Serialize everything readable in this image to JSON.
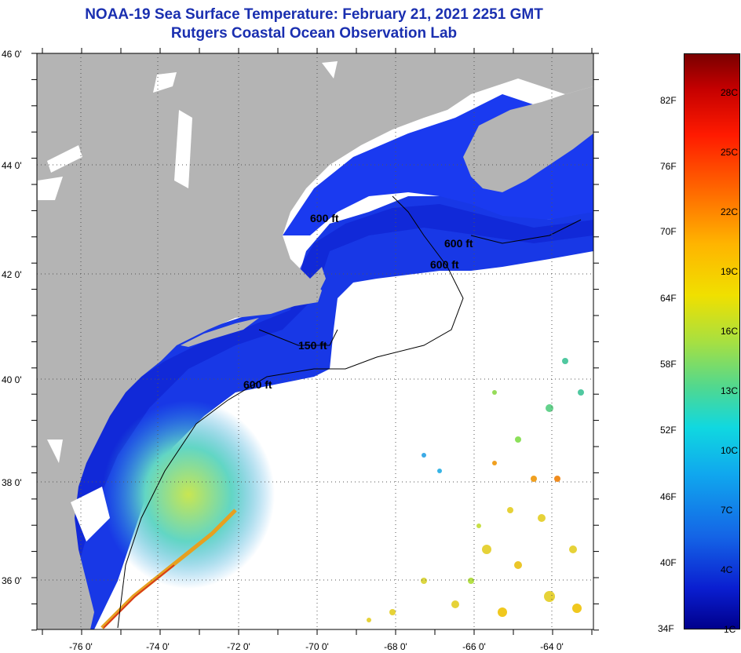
{
  "title": "NOAA-19 Sea Surface Temperature:  February 21, 2021 2251 GMT",
  "subtitle": "Rutgers Coastal Ocean Observation Lab",
  "colors": {
    "title": "#1a2fb0",
    "land": "#b4b4b4",
    "cloud": "#ffffff",
    "ocean_cold": "#1432e0",
    "ocean_mid": "#37c8e6",
    "ocean_warm": "#e6d238"
  },
  "axes": {
    "lat_labels": [
      "46 0'",
      "44 0'",
      "42 0'",
      "40 0'",
      "38 0'",
      "36 0'"
    ],
    "lon_labels": [
      "-76 0'",
      "-74 0'",
      "-72 0'",
      "-70 0'",
      "-68 0'",
      "-66 0'",
      "-64 0'"
    ],
    "lat_range": [
      35,
      46
    ],
    "lon_range": [
      -77,
      -63
    ]
  },
  "isobaths": {
    "labels": [
      "600 ft",
      "600 ft",
      "600 ft",
      "150 ft",
      "600 ft"
    ]
  },
  "colorbar": {
    "fahrenheit": [
      "82F",
      "76F",
      "70F",
      "64F",
      "58F",
      "52F",
      "46F",
      "40F",
      "34F"
    ],
    "celsius": [
      "28C",
      "25C",
      "22C",
      "19C",
      "16C",
      "13C",
      "10C",
      "7C",
      "4C",
      "1C"
    ],
    "range_c": [
      1,
      31
    ]
  }
}
